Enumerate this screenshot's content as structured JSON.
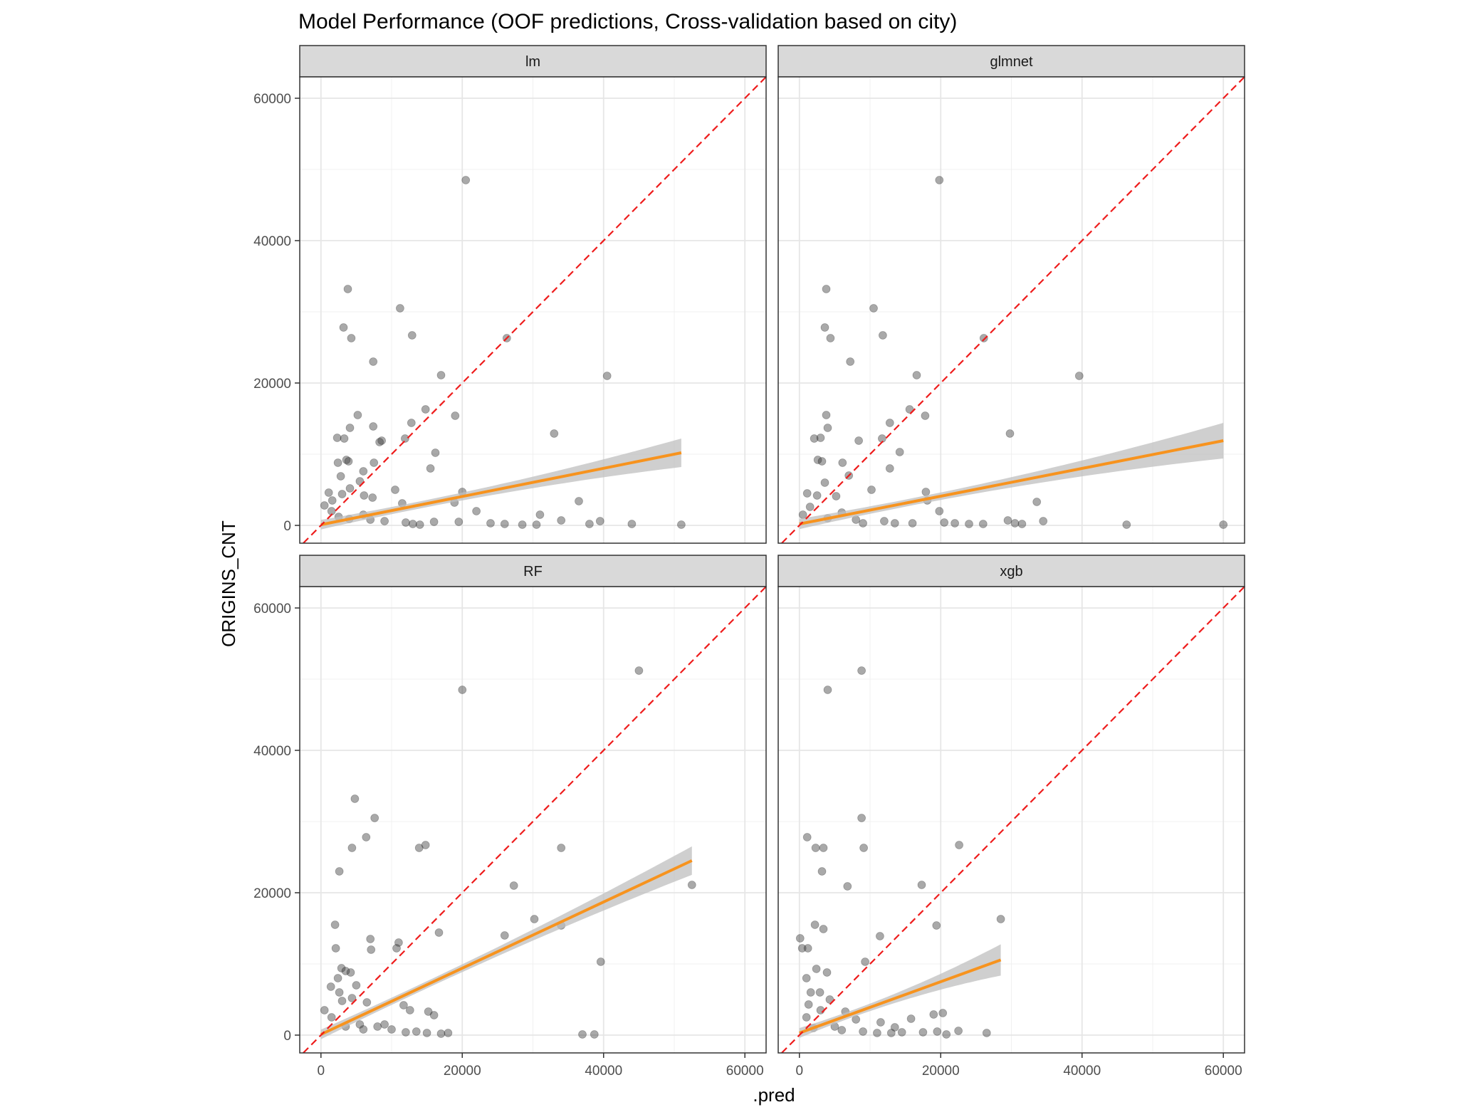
{
  "chart_data": {
    "type": "scatter",
    "title": "Model Performance (OOF predictions, Cross-validation based on city)",
    "xlabel": ".pred",
    "ylabel": "ORIGINS_CNT",
    "xlim": [
      -3000,
      63000
    ],
    "ylim": [
      -2500,
      63000
    ],
    "x_ticks": [
      0,
      20000,
      40000,
      60000
    ],
    "y_ticks": [
      0,
      20000,
      40000,
      60000
    ],
    "x_tick_labels": [
      "0",
      "20000",
      "40000",
      "60000"
    ],
    "y_tick_labels": [
      "0",
      "20000",
      "40000",
      "60000"
    ],
    "grid": true,
    "colors": {
      "points": "#333333",
      "fit_line": "#f7931e",
      "confidence_band": "#bfbfbf",
      "identity_line": "#ee1c1c",
      "strip_fill": "#d9d9d9"
    },
    "reference_line": {
      "type": "identity",
      "style": "dashed"
    },
    "panels": [
      {
        "name": "lm",
        "points": [
          [
            20500,
            48500
          ],
          [
            3800,
            33200
          ],
          [
            11200,
            30500
          ],
          [
            3200,
            27800
          ],
          [
            4300,
            26300
          ],
          [
            12900,
            26700
          ],
          [
            26300,
            26300
          ],
          [
            7400,
            23000
          ],
          [
            40500,
            21000
          ],
          [
            17000,
            21100
          ],
          [
            14800,
            16300
          ],
          [
            5200,
            15500
          ],
          [
            19000,
            15400
          ],
          [
            12800,
            14400
          ],
          [
            4100,
            13700
          ],
          [
            7400,
            13900
          ],
          [
            2300,
            12300
          ],
          [
            3300,
            12200
          ],
          [
            11900,
            12200
          ],
          [
            8600,
            11900
          ],
          [
            8300,
            11700
          ],
          [
            16200,
            10200
          ],
          [
            15500,
            8000
          ],
          [
            3600,
            9200
          ],
          [
            3900,
            9000
          ],
          [
            2400,
            8800
          ],
          [
            7500,
            8800
          ],
          [
            6000,
            7600
          ],
          [
            2800,
            6900
          ],
          [
            5500,
            6200
          ],
          [
            10500,
            5000
          ],
          [
            4100,
            5200
          ],
          [
            1100,
            4600
          ],
          [
            3000,
            4400
          ],
          [
            6100,
            4200
          ],
          [
            7300,
            3900
          ],
          [
            1600,
            3500
          ],
          [
            18900,
            3200
          ],
          [
            11500,
            3100
          ],
          [
            36500,
            3400
          ],
          [
            20000,
            4700
          ],
          [
            22000,
            2000
          ],
          [
            31000,
            1500
          ],
          [
            34000,
            700
          ],
          [
            38000,
            200
          ],
          [
            39500,
            600
          ],
          [
            24000,
            300
          ],
          [
            28500,
            100
          ],
          [
            44000,
            200
          ],
          [
            51000,
            100
          ],
          [
            16000,
            500
          ],
          [
            13000,
            200
          ],
          [
            9000,
            600
          ],
          [
            6000,
            1500
          ],
          [
            500,
            2800
          ],
          [
            1500,
            2000
          ],
          [
            2500,
            1200
          ],
          [
            4000,
            900
          ],
          [
            7000,
            800
          ],
          [
            12000,
            400
          ],
          [
            33000,
            12900
          ],
          [
            19500,
            500
          ],
          [
            30500,
            100
          ],
          [
            14000,
            100
          ],
          [
            26000,
            200
          ]
        ],
        "fit": {
          "x_range": [
            0,
            51000
          ],
          "intercept": 100,
          "slope": 0.198,
          "band_halfwidth": [
            500,
            2000
          ]
        }
      },
      {
        "name": "glmnet",
        "points": [
          [
            19800,
            48500
          ],
          [
            3800,
            33200
          ],
          [
            10500,
            30500
          ],
          [
            3600,
            27800
          ],
          [
            4400,
            26300
          ],
          [
            11800,
            26700
          ],
          [
            26100,
            26300
          ],
          [
            7200,
            23000
          ],
          [
            39600,
            21000
          ],
          [
            16600,
            21100
          ],
          [
            15600,
            16300
          ],
          [
            3800,
            15500
          ],
          [
            17800,
            15400
          ],
          [
            12800,
            14400
          ],
          [
            3000,
            12300
          ],
          [
            11700,
            12200
          ],
          [
            8400,
            11900
          ],
          [
            2100,
            12200
          ],
          [
            14200,
            10300
          ],
          [
            12800,
            8000
          ],
          [
            4000,
            13700
          ],
          [
            2600,
            9200
          ],
          [
            3200,
            9000
          ],
          [
            6100,
            8800
          ],
          [
            7000,
            7000
          ],
          [
            3600,
            6000
          ],
          [
            10200,
            5000
          ],
          [
            1100,
            4500
          ],
          [
            2500,
            4200
          ],
          [
            5200,
            4100
          ],
          [
            18100,
            3500
          ],
          [
            17900,
            4700
          ],
          [
            19800,
            2000
          ],
          [
            29800,
            12900
          ],
          [
            29500,
            700
          ],
          [
            31500,
            200
          ],
          [
            33600,
            3300
          ],
          [
            34500,
            600
          ],
          [
            46300,
            100
          ],
          [
            60000,
            100
          ],
          [
            26000,
            200
          ],
          [
            22000,
            300
          ],
          [
            13500,
            300
          ],
          [
            9000,
            300
          ],
          [
            4000,
            1000
          ],
          [
            6000,
            1800
          ],
          [
            1500,
            2600
          ],
          [
            500,
            1500
          ],
          [
            16000,
            300
          ],
          [
            20500,
            400
          ],
          [
            24000,
            200
          ],
          [
            30500,
            300
          ],
          [
            12000,
            600
          ],
          [
            8000,
            800
          ]
        ],
        "fit": {
          "x_range": [
            0,
            60000
          ],
          "intercept": 200,
          "slope": 0.195,
          "band_halfwidth": [
            500,
            2500
          ]
        }
      },
      {
        "name": "RF",
        "points": [
          [
            20000,
            48500
          ],
          [
            45000,
            51200
          ],
          [
            4800,
            33200
          ],
          [
            7600,
            30500
          ],
          [
            6400,
            27800
          ],
          [
            4400,
            26300
          ],
          [
            14800,
            26700
          ],
          [
            13900,
            26300
          ],
          [
            34000,
            26300
          ],
          [
            2600,
            23000
          ],
          [
            27300,
            21000
          ],
          [
            52500,
            21100
          ],
          [
            30200,
            16300
          ],
          [
            2000,
            15500
          ],
          [
            34000,
            15400
          ],
          [
            16700,
            14400
          ],
          [
            26000,
            14000
          ],
          [
            7000,
            13500
          ],
          [
            11000,
            13000
          ],
          [
            2100,
            12200
          ],
          [
            7100,
            12000
          ],
          [
            10700,
            12200
          ],
          [
            39600,
            10300
          ],
          [
            2900,
            9400
          ],
          [
            4200,
            8800
          ],
          [
            1400,
            6800
          ],
          [
            2600,
            6000
          ],
          [
            4400,
            5200
          ],
          [
            3000,
            4800
          ],
          [
            6500,
            4600
          ],
          [
            11700,
            4200
          ],
          [
            12600,
            3500
          ],
          [
            15200,
            3300
          ],
          [
            16000,
            2800
          ],
          [
            37000,
            100
          ],
          [
            38700,
            100
          ],
          [
            17000,
            200
          ],
          [
            18000,
            300
          ],
          [
            13500,
            500
          ],
          [
            10000,
            800
          ],
          [
            8000,
            1200
          ],
          [
            5500,
            1500
          ],
          [
            500,
            3500
          ],
          [
            1500,
            2500
          ],
          [
            3500,
            1200
          ],
          [
            6000,
            800
          ],
          [
            12000,
            400
          ],
          [
            15000,
            300
          ],
          [
            3500,
            9000
          ],
          [
            5000,
            7000
          ],
          [
            2400,
            8000
          ],
          [
            9000,
            1500
          ]
        ],
        "fit": {
          "x_range": [
            0,
            52500
          ],
          "intercept": 100,
          "slope": 0.465,
          "band_halfwidth": [
            500,
            2000
          ]
        }
      },
      {
        "name": "xgb",
        "points": [
          [
            4000,
            48500
          ],
          [
            8800,
            51200
          ],
          [
            8800,
            30500
          ],
          [
            1100,
            27800
          ],
          [
            2300,
            26300
          ],
          [
            3400,
            26300
          ],
          [
            9100,
            26300
          ],
          [
            22600,
            26700
          ],
          [
            3200,
            23000
          ],
          [
            6800,
            20900
          ],
          [
            17300,
            21100
          ],
          [
            28500,
            16300
          ],
          [
            2200,
            15500
          ],
          [
            3400,
            14900
          ],
          [
            19400,
            15400
          ],
          [
            11400,
            13900
          ],
          [
            100,
            13600
          ],
          [
            400,
            12200
          ],
          [
            1200,
            12200
          ],
          [
            9300,
            10300
          ],
          [
            2400,
            9300
          ],
          [
            3900,
            8800
          ],
          [
            1000,
            8000
          ],
          [
            1600,
            6000
          ],
          [
            2900,
            6000
          ],
          [
            4300,
            5000
          ],
          [
            1300,
            4300
          ],
          [
            6500,
            3300
          ],
          [
            19000,
            2900
          ],
          [
            20300,
            3100
          ],
          [
            8000,
            2200
          ],
          [
            11500,
            1800
          ],
          [
            13500,
            1100
          ],
          [
            15800,
            2300
          ],
          [
            14500,
            400
          ],
          [
            19500,
            500
          ],
          [
            20800,
            100
          ],
          [
            22500,
            600
          ],
          [
            26500,
            300
          ],
          [
            17500,
            400
          ],
          [
            13000,
            300
          ],
          [
            9000,
            500
          ],
          [
            5000,
            1200
          ],
          [
            2000,
            1000
          ],
          [
            1000,
            2500
          ],
          [
            3000,
            3500
          ],
          [
            6000,
            700
          ],
          [
            11000,
            300
          ]
        ],
        "fit": {
          "x_range": [
            0,
            28500
          ],
          "intercept": 300,
          "slope": 0.36,
          "band_halfwidth": [
            500,
            2200
          ]
        }
      }
    ]
  }
}
